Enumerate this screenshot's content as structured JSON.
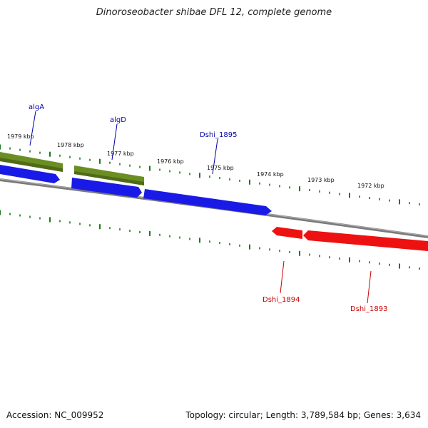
{
  "title": "Dinoroseobacter shibae DFL 12, complete genome",
  "footer": {
    "accession": "Accession: NC_009952",
    "summary": "Topology: circular; Length: 3,789,584 bp; Genes: 3,634"
  },
  "colors": {
    "forward_cds": "#1a1ae6",
    "reverse_cds": "#ee1111",
    "olive_genes": "#6b8e23",
    "ticks": "#1a7a1a",
    "backbone": "#888888",
    "label_forward": "#0000aa",
    "label_reverse": "#cc0000"
  },
  "kbp_labels": [
    "1979 kbp",
    "1978 kbp",
    "1977 kbp",
    "1976 kbp",
    "1975 kbp",
    "1974 kbp",
    "1973 kbp",
    "1972 kbp"
  ],
  "gene_labels": {
    "algA": "algA",
    "algD": "algD",
    "dshi1895": "Dshi_1895",
    "dshi1894": "Dshi_1894",
    "dshi1893": "Dshi_1893"
  }
}
